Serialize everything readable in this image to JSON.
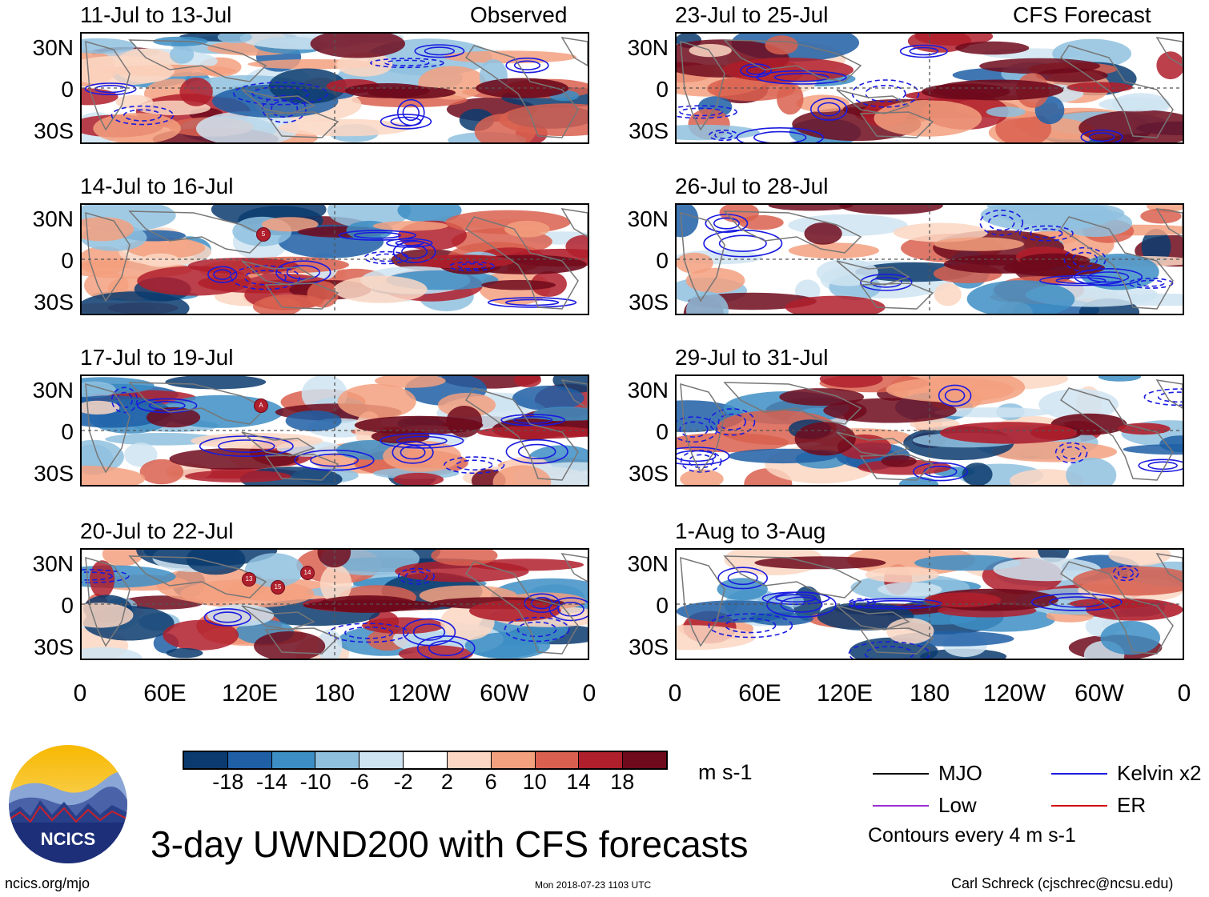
{
  "headers": {
    "left": "Observed",
    "right": "CFS Forecast"
  },
  "panels_left": [
    {
      "title": "11-Jul to 13-Jul"
    },
    {
      "title": "14-Jul to 16-Jul"
    },
    {
      "title": "17-Jul to 19-Jul"
    },
    {
      "title": "20-Jul to 22-Jul"
    }
  ],
  "panels_right": [
    {
      "title": "23-Jul to 25-Jul"
    },
    {
      "title": "26-Jul to 28-Jul"
    },
    {
      "title": "29-Jul to 31-Jul"
    },
    {
      "title": "1-Aug to 3-Aug"
    }
  ],
  "lat_labels": [
    "30N",
    "0",
    "30S"
  ],
  "lon_labels": [
    "0",
    "60E",
    "120E",
    "180",
    "120W",
    "60W",
    "0"
  ],
  "storms": [
    {
      "panel": "14-Jul to 16-Jul",
      "label": "5"
    },
    {
      "panel": "17-Jul to 19-Jul",
      "label": "A"
    },
    {
      "panel": "20-Jul to 22-Jul",
      "label": "13"
    },
    {
      "panel": "20-Jul to 22-Jul",
      "label": "15"
    },
    {
      "panel": "20-Jul to 22-Jul",
      "label": "14"
    }
  ],
  "colorbar": {
    "ticks": [
      "-18",
      "-14",
      "-10",
      "-6",
      "-2",
      "2",
      "6",
      "10",
      "14",
      "18"
    ],
    "colors": [
      "#0b3b6e",
      "#1f5fa6",
      "#3d8ec4",
      "#8fc1df",
      "#cfe4f1",
      "#ffffff",
      "#fcd7c3",
      "#f3a07f",
      "#d9604f",
      "#b01f2c",
      "#6e0a1c"
    ],
    "units": "m s-1"
  },
  "legend": {
    "items": [
      {
        "label": "MJO",
        "color": "#000000"
      },
      {
        "label": "Kelvin x2",
        "color": "#1a1ae0"
      },
      {
        "label": "Low",
        "color": "#9b30d0"
      },
      {
        "label": "ER",
        "color": "#d01010"
      }
    ],
    "contours_note": "Contours every 4 m s-1"
  },
  "logo_text": "NCICS",
  "main_title": "3-day UWND200 with CFS forecasts",
  "footer": {
    "left": "ncics.org/mjo",
    "center": "Mon 2018-07-23 1103 UTC",
    "right": "Carl Schreck (cjschrec@ncsu.edu)"
  }
}
